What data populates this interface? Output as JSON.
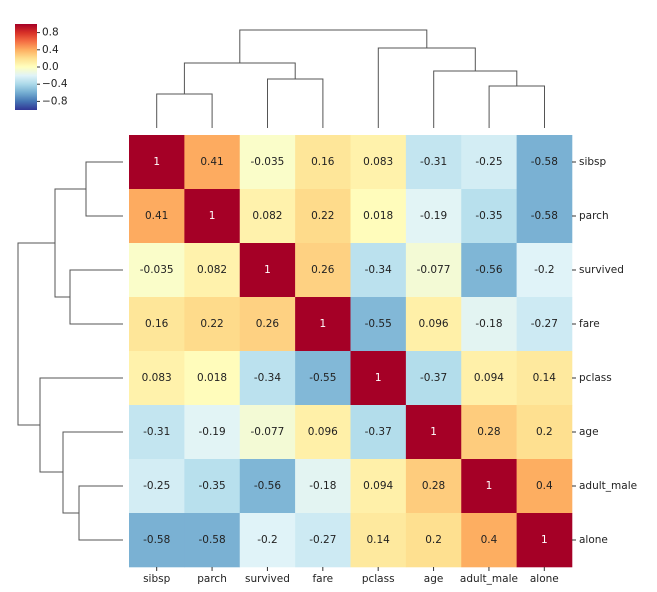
{
  "chart_data": {
    "type": "heatmap",
    "x_categories": [
      "sibsp",
      "parch",
      "survived",
      "fare",
      "pclass",
      "age",
      "adult_male",
      "alone"
    ],
    "y_categories": [
      "sibsp",
      "parch",
      "survived",
      "fare",
      "pclass",
      "age",
      "adult_male",
      "alone"
    ],
    "values": [
      [
        1,
        0.41,
        -0.035,
        0.16,
        0.083,
        -0.31,
        -0.25,
        -0.58
      ],
      [
        0.41,
        1,
        0.082,
        0.22,
        0.018,
        -0.19,
        -0.35,
        -0.58
      ],
      [
        -0.035,
        0.082,
        1,
        0.26,
        -0.34,
        -0.077,
        -0.56,
        -0.2
      ],
      [
        0.16,
        0.22,
        0.26,
        1,
        -0.55,
        0.096,
        -0.18,
        -0.27
      ],
      [
        0.083,
        0.018,
        -0.34,
        -0.55,
        1,
        -0.37,
        0.094,
        0.14
      ],
      [
        -0.31,
        -0.19,
        -0.077,
        0.096,
        -0.37,
        1,
        0.28,
        0.2
      ],
      [
        -0.25,
        -0.35,
        -0.56,
        -0.18,
        0.094,
        0.28,
        1,
        0.4
      ],
      [
        -0.58,
        -0.58,
        -0.2,
        -0.27,
        0.14,
        0.2,
        0.4,
        1
      ]
    ],
    "colormap": "RdYlBu_r",
    "clim": [
      -1,
      1
    ],
    "cticks": [
      0.8,
      0.4,
      {
        "value": 0,
        "label": "0.0"
      },
      {
        "value": -0.4,
        "label": "−0.4"
      },
      {
        "value": -0.8,
        "label": "−0.8"
      }
    ]
  }
}
